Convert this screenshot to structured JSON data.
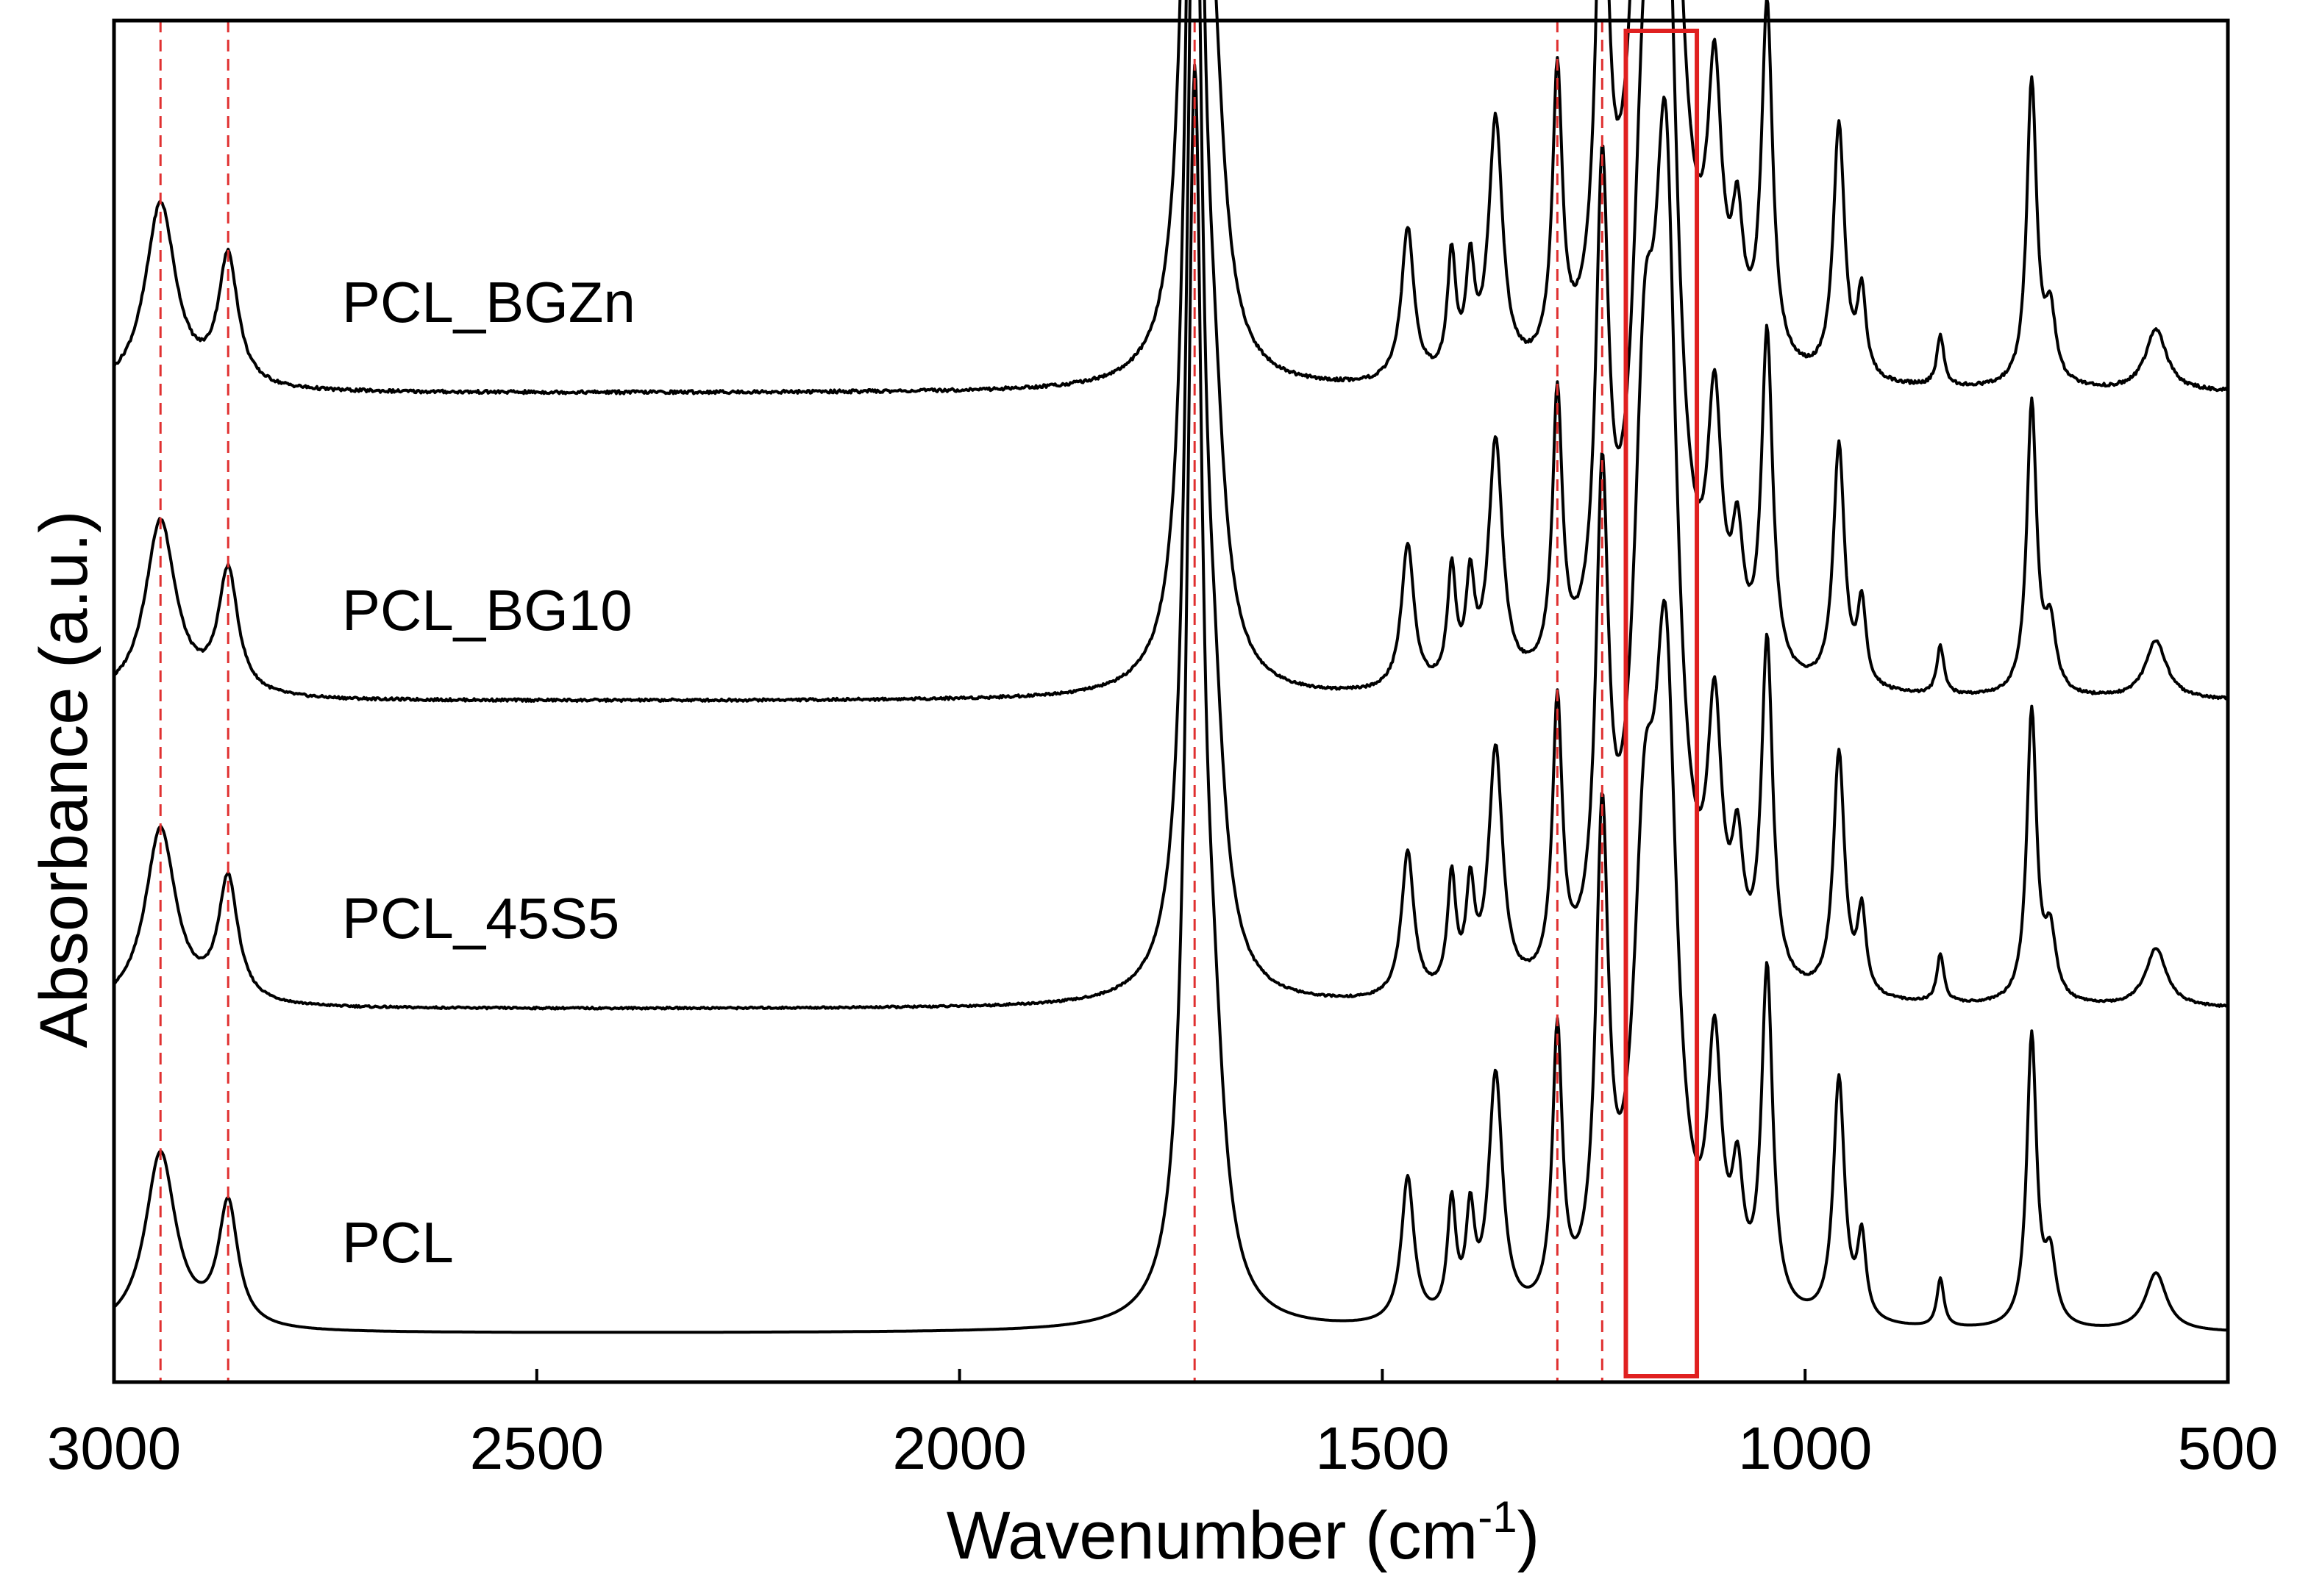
{
  "chart_data": {
    "type": "line",
    "title": "",
    "xlabel": "Wavenumber (cm",
    "xlabel_superscript": "-1",
    "xlabel_suffix": ")",
    "ylabel": "Absorbance (a.u.)",
    "xlim": [
      3000,
      500
    ],
    "x_reversed": true,
    "y_units": "arbitrary offset absorbance",
    "ylim": [
      0,
      4.2
    ],
    "xticks": [
      {
        "value": 3000,
        "label": "3000"
      },
      {
        "value": 2500,
        "label": "2500"
      },
      {
        "value": 2000,
        "label": "2000"
      },
      {
        "value": 1500,
        "label": "1500"
      },
      {
        "value": 1000,
        "label": "1000"
      },
      {
        "value": 500,
        "label": "500"
      }
    ],
    "grid": false,
    "legend": "inline labels above each trace",
    "reference_lines": {
      "color": "#e03030",
      "style": "dashed",
      "wavenumbers": [
        2945,
        2865,
        1722,
        1293,
        1240
      ]
    },
    "highlight_region": {
      "color": "#e02020",
      "x_range": [
        1212,
        1128
      ]
    },
    "peak_template": [
      {
        "center": 2945,
        "width": 22,
        "height": 0.55
      },
      {
        "center": 2865,
        "width": 14,
        "height": 0.38
      },
      {
        "center": 1722,
        "width": 11,
        "height": 3.7
      },
      {
        "center": 1700,
        "width": 16,
        "height": 0.6
      },
      {
        "center": 1470,
        "width": 9,
        "height": 0.45
      },
      {
        "center": 1418,
        "width": 6,
        "height": 0.35
      },
      {
        "center": 1396,
        "width": 6,
        "height": 0.3
      },
      {
        "center": 1366,
        "width": 10,
        "height": 0.75
      },
      {
        "center": 1293,
        "width": 7,
        "height": 0.85
      },
      {
        "center": 1240,
        "width": 9,
        "height": 1.45
      },
      {
        "center": 1190,
        "width": 16,
        "height": 1.5
      },
      {
        "center": 1165,
        "width": 16,
        "height": 2.3
      },
      {
        "center": 1107,
        "width": 10,
        "height": 0.75
      },
      {
        "center": 1080,
        "width": 8,
        "height": 0.35
      },
      {
        "center": 1045,
        "width": 8,
        "height": 1.05
      },
      {
        "center": 960,
        "width": 8,
        "height": 0.75
      },
      {
        "center": 933,
        "width": 6,
        "height": 0.25
      },
      {
        "center": 840,
        "width": 5,
        "height": 0.15
      },
      {
        "center": 732,
        "width": 7,
        "height": 0.9
      },
      {
        "center": 710,
        "width": 8,
        "height": 0.2
      },
      {
        "center": 585,
        "width": 15,
        "height": 0.18
      }
    ],
    "series": [
      {
        "name": "PCL",
        "label": "PCL",
        "offset": 0.15,
        "scale": 1.0,
        "peak_1165_scale": 0.8,
        "noise": 0.0
      },
      {
        "name": "PCL_45S5",
        "label": "PCL_45S5",
        "offset": 1.15,
        "scale": 1.0,
        "peak_1165_scale": 1.0,
        "noise": 0.006
      },
      {
        "name": "PCL_BG10",
        "label": "PCL_BG10",
        "offset": 2.1,
        "scale": 1.0,
        "peak_1165_scale": 1.0,
        "noise": 0.008
      },
      {
        "name": "PCL_BGZn",
        "label": "PCL_BGZn",
        "offset": 3.05,
        "scale": 1.05,
        "peak_1165_scale": 1.05,
        "noise": 0.01
      }
    ]
  }
}
